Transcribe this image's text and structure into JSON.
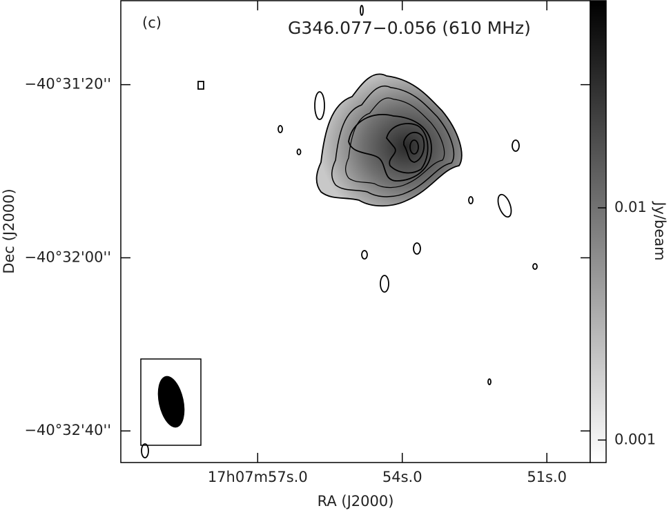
{
  "chart_data": {
    "type": "contour-map",
    "panel_label": "(c)",
    "title": "G346.077−0.056 (610 MHz)",
    "x_label": "RA (J2000)",
    "y_label": "Dec (J2000)",
    "xlim": [
      59.84,
      50.1
    ],
    "xticks": [
      {
        "value": 57.0,
        "label": "17h07m57s.0"
      },
      {
        "value": 54.0,
        "label": "54s.0"
      },
      {
        "value": 51.0,
        "label": "51s.0"
      }
    ],
    "ylim": [
      -145860.6,
      -145967.3
    ],
    "yticks": [
      {
        "value": -145880,
        "label": "−40°31'20''"
      },
      {
        "value": -145920,
        "label": "−40°32'00''"
      },
      {
        "value": -145960,
        "label": "−40°32'40''"
      }
    ],
    "colorbar": {
      "label": "Jy/beam",
      "log": true,
      "lim": [
        0.078,
        0.0008
      ],
      "ticks": [
        0.01,
        0.001
      ],
      "colors": [
        "#000000",
        "#ffffff"
      ]
    }
  }
}
